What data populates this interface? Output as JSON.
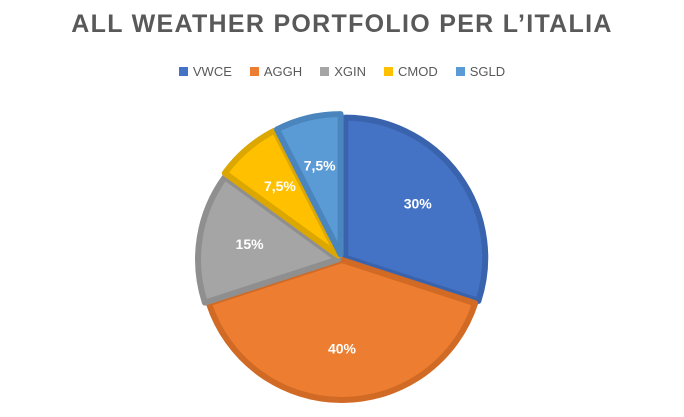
{
  "chart_data": {
    "type": "pie",
    "title": "ALL WEATHER PORTFOLIO PER L’ITALIA",
    "legend_position": "top",
    "categories": [
      "VWCE",
      "AGGH",
      "XGIN",
      "CMOD",
      "SGLD"
    ],
    "values": [
      30,
      40,
      15,
      7.5,
      7.5
    ],
    "labels": [
      "30%",
      "40%",
      "15%",
      "7,5%",
      "7,5%"
    ],
    "colors": [
      "#4472C4",
      "#ED7D31",
      "#A5A5A5",
      "#FFC000",
      "#5B9BD5"
    ],
    "border_colors": [
      "#3a63ad",
      "#d06a24",
      "#8f8f8f",
      "#dba700",
      "#4a86bd"
    ]
  }
}
